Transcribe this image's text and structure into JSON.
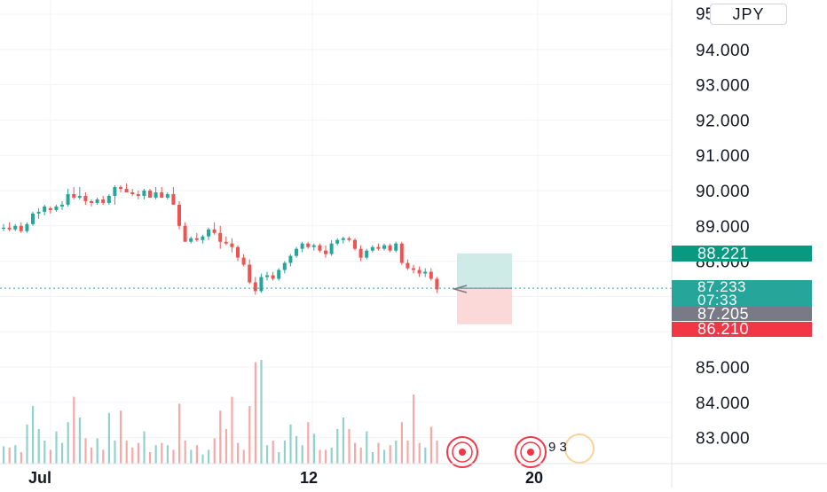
{
  "currency_label": "JPY",
  "chart_data": {
    "type": "candlestick",
    "y_axis": {
      "ticks": [
        "94.000",
        "93.000",
        "92.000",
        "91.000",
        "90.000",
        "89.000",
        "88.000",
        "85.000",
        "84.000",
        "83.000"
      ],
      "top_partial_tick": "95.000",
      "range": [
        82.5,
        95.5
      ]
    },
    "x_axis": {
      "ticks": [
        "Jul",
        "12",
        "20"
      ]
    },
    "grid": true,
    "candles": [
      [
        88.95,
        89.05,
        88.85,
        88.95
      ],
      [
        88.95,
        89.1,
        88.85,
        88.9
      ],
      [
        88.9,
        89.05,
        88.85,
        89.0
      ],
      [
        89.0,
        89.1,
        88.8,
        88.85
      ],
      [
        88.85,
        89.1,
        88.8,
        89.05
      ],
      [
        89.05,
        89.4,
        89.0,
        89.35
      ],
      [
        89.35,
        89.5,
        89.2,
        89.4
      ],
      [
        89.4,
        89.6,
        89.3,
        89.55
      ],
      [
        89.5,
        89.55,
        89.35,
        89.45
      ],
      [
        89.45,
        89.6,
        89.4,
        89.55
      ],
      [
        89.55,
        89.7,
        89.45,
        89.6
      ],
      [
        89.6,
        90.05,
        89.55,
        89.9
      ],
      [
        89.9,
        90.1,
        89.75,
        89.8
      ],
      [
        89.8,
        90.1,
        89.75,
        89.85
      ],
      [
        89.85,
        89.95,
        89.6,
        89.7
      ],
      [
        89.7,
        89.75,
        89.55,
        89.65
      ],
      [
        89.65,
        89.8,
        89.6,
        89.75
      ],
      [
        89.75,
        89.85,
        89.6,
        89.65
      ],
      [
        89.65,
        89.9,
        89.6,
        89.85
      ],
      [
        89.85,
        90.15,
        89.6,
        90.1
      ],
      [
        90.1,
        90.15,
        89.95,
        90.05
      ],
      [
        90.05,
        90.2,
        89.95,
        89.95
      ],
      [
        89.95,
        90.05,
        89.85,
        89.9
      ],
      [
        89.9,
        90.0,
        89.75,
        89.85
      ],
      [
        89.85,
        90.05,
        89.75,
        90.0
      ],
      [
        90.0,
        90.05,
        89.8,
        89.8
      ],
      [
        89.8,
        90.1,
        89.75,
        89.95
      ],
      [
        89.95,
        90.1,
        89.8,
        89.8
      ],
      [
        89.8,
        89.95,
        89.75,
        89.9
      ],
      [
        89.9,
        90.1,
        89.65,
        89.6
      ],
      [
        89.6,
        89.7,
        88.9,
        89.0
      ],
      [
        89.0,
        89.1,
        88.55,
        88.55
      ],
      [
        88.55,
        88.7,
        88.5,
        88.65
      ],
      [
        88.65,
        88.8,
        88.55,
        88.6
      ],
      [
        88.6,
        88.75,
        88.5,
        88.7
      ],
      [
        88.7,
        88.95,
        88.6,
        88.9
      ],
      [
        88.9,
        89.1,
        88.75,
        88.8
      ],
      [
        88.8,
        89.0,
        88.35,
        88.55
      ],
      [
        88.55,
        88.7,
        88.45,
        88.5
      ],
      [
        88.5,
        88.65,
        88.25,
        88.4
      ],
      [
        88.4,
        88.45,
        88.0,
        88.1
      ],
      [
        88.1,
        88.2,
        87.85,
        87.9
      ],
      [
        87.9,
        88.05,
        87.35,
        87.4
      ],
      [
        87.4,
        87.55,
        87.05,
        87.15
      ],
      [
        87.15,
        87.65,
        87.1,
        87.55
      ],
      [
        87.55,
        87.7,
        87.45,
        87.6
      ],
      [
        87.6,
        87.7,
        87.45,
        87.5
      ],
      [
        87.5,
        87.8,
        87.45,
        87.75
      ],
      [
        87.75,
        88.0,
        87.65,
        87.95
      ],
      [
        87.95,
        88.2,
        87.85,
        88.15
      ],
      [
        88.15,
        88.4,
        88.1,
        88.35
      ],
      [
        88.35,
        88.55,
        88.25,
        88.5
      ],
      [
        88.5,
        88.55,
        88.35,
        88.4
      ],
      [
        88.4,
        88.5,
        88.3,
        88.45
      ],
      [
        88.45,
        88.5,
        88.25,
        88.3
      ],
      [
        88.3,
        88.45,
        88.1,
        88.2
      ],
      [
        88.2,
        88.6,
        88.15,
        88.5
      ],
      [
        88.5,
        88.65,
        88.45,
        88.6
      ],
      [
        88.6,
        88.7,
        88.5,
        88.65
      ],
      [
        88.65,
        88.7,
        88.55,
        88.6
      ],
      [
        88.6,
        88.65,
        88.3,
        88.35
      ],
      [
        88.35,
        88.45,
        88.0,
        88.1
      ],
      [
        88.1,
        88.35,
        88.05,
        88.3
      ],
      [
        88.3,
        88.45,
        88.25,
        88.4
      ],
      [
        88.4,
        88.5,
        88.3,
        88.35
      ],
      [
        88.35,
        88.5,
        88.3,
        88.45
      ],
      [
        88.45,
        88.5,
        88.25,
        88.3
      ],
      [
        88.3,
        88.55,
        88.25,
        88.5
      ],
      [
        88.5,
        88.55,
        87.9,
        87.95
      ],
      [
        87.95,
        88.05,
        87.75,
        87.8
      ],
      [
        87.8,
        87.9,
        87.65,
        87.75
      ],
      [
        87.75,
        87.85,
        87.55,
        87.65
      ],
      [
        87.65,
        87.8,
        87.55,
        87.7
      ],
      [
        87.7,
        87.8,
        87.45,
        87.5
      ],
      [
        87.5,
        87.55,
        87.1,
        87.2
      ]
    ],
    "volumes": [
      0.15,
      0.14,
      0.16,
      0.1,
      0.34,
      0.5,
      0.3,
      0.2,
      0.12,
      0.28,
      0.18,
      0.36,
      0.58,
      0.4,
      0.22,
      0.14,
      0.22,
      0.12,
      0.44,
      0.2,
      0.46,
      0.2,
      0.14,
      0.18,
      0.28,
      0.1,
      0.16,
      0.18,
      0.16,
      0.12,
      0.52,
      0.2,
      0.12,
      0.16,
      0.08,
      0.12,
      0.22,
      0.46,
      0.3,
      0.58,
      0.18,
      0.12,
      0.5,
      0.88,
      0.9,
      0.16,
      0.2,
      0.1,
      0.2,
      0.34,
      0.24,
      0.16,
      0.36,
      0.26,
      0.12,
      0.12,
      0.14,
      0.3,
      0.4,
      0.3,
      0.18,
      0.14,
      0.28,
      0.1,
      0.18,
      0.12,
      0.16,
      0.2,
      0.36,
      0.2,
      0.6,
      0.18,
      0.14,
      0.32,
      0.2
    ],
    "last_price_line": 87.233,
    "position": {
      "take_profit": 88.221,
      "entry": 87.233,
      "stop_loss": 86.21
    }
  },
  "price_tags": {
    "take_profit": "88.221",
    "last_price": "87.233",
    "countdown": "07:33",
    "bid_price": "87.205",
    "stop_loss": "86.210"
  },
  "events_label": "9  3",
  "colors": {
    "bull": "#26a69a",
    "bear": "#ef5350",
    "tp_zone": "#cfebe8",
    "sl_zone": "#fbd9d9",
    "grid": "#f0f3fa",
    "event_marker": "#f23645"
  }
}
